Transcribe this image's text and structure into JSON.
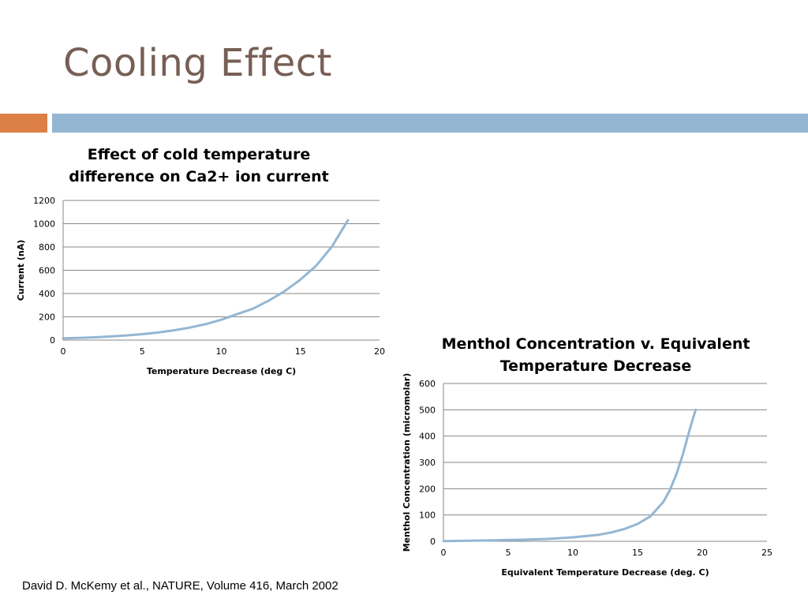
{
  "slide": {
    "title": "Cooling Effect",
    "citation": "David D. McKemy et al., NATURE, Volume 416, March 2002"
  },
  "colors": {
    "title": "#775f55",
    "accent_orange": "#dd8047",
    "accent_blue": "#94b6d2",
    "series_line": "#94b6d2",
    "gridline": "#878787"
  },
  "chart_data": [
    {
      "type": "line",
      "title_lines": [
        "Effect of cold temperature",
        "difference on Ca2+ ion current"
      ],
      "xlabel": "Temperature Decrease (deg C)",
      "ylabel": "Current (nA)",
      "xlim": [
        0,
        20
      ],
      "ylim": [
        0,
        1200
      ],
      "xticks": [
        0,
        5,
        10,
        15,
        20
      ],
      "yticks": [
        0,
        200,
        400,
        600,
        800,
        1000,
        1200
      ],
      "grid": true,
      "series": [
        {
          "x": [
            0,
            1,
            2,
            3,
            4,
            5,
            6,
            7,
            8,
            9,
            10,
            11,
            12,
            13,
            14,
            15,
            16,
            17,
            18
          ],
          "y": [
            15,
            19,
            24,
            31,
            40,
            51,
            65,
            84,
            107,
            137,
            175,
            223,
            270,
            340,
            420,
            520,
            640,
            805,
            1030
          ]
        }
      ]
    },
    {
      "type": "line",
      "title_lines": [
        "Menthol Concentration v. Equivalent",
        "Temperature Decrease"
      ],
      "xlabel": "Equivalent Temperature Decrease (deg. C)",
      "ylabel": "Menthol Concentration (micromolar)",
      "xlim": [
        0,
        25
      ],
      "ylim": [
        0,
        600
      ],
      "xticks": [
        0,
        5,
        10,
        15,
        20,
        25
      ],
      "yticks": [
        0,
        100,
        200,
        300,
        400,
        500,
        600
      ],
      "grid": true,
      "series": [
        {
          "x": [
            0,
            2,
            4,
            6,
            8,
            10,
            12,
            13,
            14,
            15,
            16,
            17,
            17.5,
            18,
            18.5,
            19,
            19.3,
            19.5
          ],
          "y": [
            1,
            2,
            4,
            6,
            9,
            15,
            25,
            34,
            47,
            66,
            95,
            150,
            195,
            255,
            330,
            420,
            470,
            500
          ]
        }
      ]
    }
  ]
}
